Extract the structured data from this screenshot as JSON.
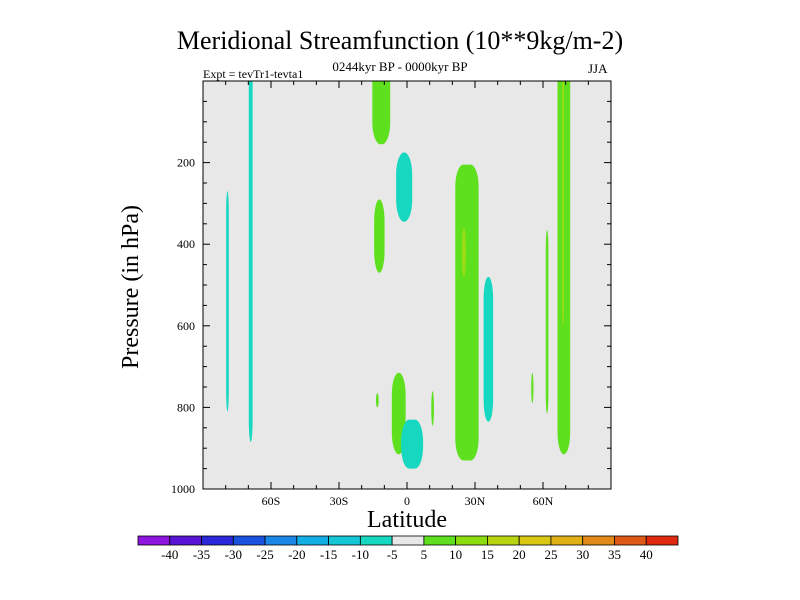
{
  "chart_data": {
    "type": "heatmap",
    "title": "Meridional Streamfunction (10**9kg/m-2)",
    "subtitle_left": "Expt = tevTr1-tevta1",
    "subtitle_center": "0244kyr BP - 0000kyr BP",
    "subtitle_right": "JJA",
    "xlabel": "Latitude",
    "ylabel": "Pressure (in hPa)",
    "xlim": [
      -90,
      90
    ],
    "ylim": [
      1000,
      0
    ],
    "x_ticks": [
      {
        "value": -60,
        "label": "60S"
      },
      {
        "value": -30,
        "label": "30S"
      },
      {
        "value": 0,
        "label": "0"
      },
      {
        "value": 30,
        "label": "30N"
      },
      {
        "value": 60,
        "label": "60N"
      }
    ],
    "y_ticks": [
      {
        "value": 200,
        "label": "200"
      },
      {
        "value": 400,
        "label": "400"
      },
      {
        "value": 600,
        "label": "600"
      },
      {
        "value": 800,
        "label": "800"
      },
      {
        "value": 1000,
        "label": "1000"
      }
    ],
    "colorbar": {
      "labels": [
        "-40",
        "-35",
        "-30",
        "-25",
        "-20",
        "-15",
        "-10",
        "-5",
        "5",
        "10",
        "15",
        "20",
        "25",
        "30",
        "35",
        "40"
      ],
      "colors": [
        "#8e14e0",
        "#5a14d6",
        "#2a28d8",
        "#1a52e0",
        "#1a86e6",
        "#14aee6",
        "#14c6d6",
        "#16d8c0",
        "#e8e8e8",
        "#5ee01e",
        "#8cdc10",
        "#b8d410",
        "#d8c814",
        "#e0b014",
        "#e08818",
        "#e05818",
        "#e02a10"
      ]
    },
    "background_color": "#e8e8e8",
    "contours": [
      {
        "id": "cyan-sliver-80s",
        "sign": "negative",
        "lat": [
          -79.8,
          -78.6
        ],
        "p": [
          270,
          810
        ]
      },
      {
        "id": "cyan-band-68s",
        "sign": "negative",
        "lat": [
          -69.8,
          -68.1
        ],
        "p": [
          0,
          885
        ]
      },
      {
        "id": "green-top-12s",
        "sign": "positive",
        "lat": [
          -15.3,
          -7.4
        ],
        "p": [
          0,
          155
        ]
      },
      {
        "id": "green-mid-13s",
        "sign": "positive",
        "lat": [
          -14.5,
          -9.9
        ],
        "p": [
          290,
          470
        ]
      },
      {
        "id": "cyan-top-0",
        "sign": "negative",
        "lat": [
          -4.8,
          2.3
        ],
        "p": [
          175,
          345
        ]
      },
      {
        "id": "green-low-5s",
        "sign": "positive",
        "lat": [
          -6.7,
          -0.6
        ],
        "p": [
          715,
          915
        ]
      },
      {
        "id": "cyan-low-2n",
        "sign": "negative",
        "lat": [
          -2.6,
          7.1
        ],
        "p": [
          830,
          950
        ]
      },
      {
        "id": "green-tiny-13s",
        "sign": "positive",
        "lat": [
          -13.7,
          -12.5
        ],
        "p": [
          765,
          800
        ]
      },
      {
        "id": "green-tiny-11n",
        "sign": "positive",
        "lat": [
          10.7,
          11.9
        ],
        "p": [
          760,
          845
        ]
      },
      {
        "id": "green-cell-25n",
        "sign": "positive",
        "lat": [
          21.3,
          31.6
        ],
        "p": [
          205,
          930
        ]
      },
      {
        "id": "yellow-core-25n",
        "sign": "positive",
        "lat": [
          24.2,
          26.0
        ],
        "p": [
          360,
          480
        ]
      },
      {
        "id": "cyan-cell-37n",
        "sign": "negative",
        "lat": [
          33.8,
          38.0
        ],
        "p": [
          480,
          835
        ]
      },
      {
        "id": "green-tiny-56n",
        "sign": "positive",
        "lat": [
          54.8,
          55.8
        ],
        "p": [
          715,
          790
        ]
      },
      {
        "id": "green-sliver-62n",
        "sign": "positive",
        "lat": [
          61.2,
          62.4
        ],
        "p": [
          365,
          815
        ]
      },
      {
        "id": "green-band-70n",
        "sign": "positive",
        "lat": [
          66.4,
          72.0
        ],
        "p": [
          0,
          915
        ]
      },
      {
        "id": "yellow-thread-69n",
        "sign": "positive",
        "lat": [
          68.5,
          69.3
        ],
        "p": [
          0,
          600
        ]
      }
    ]
  }
}
